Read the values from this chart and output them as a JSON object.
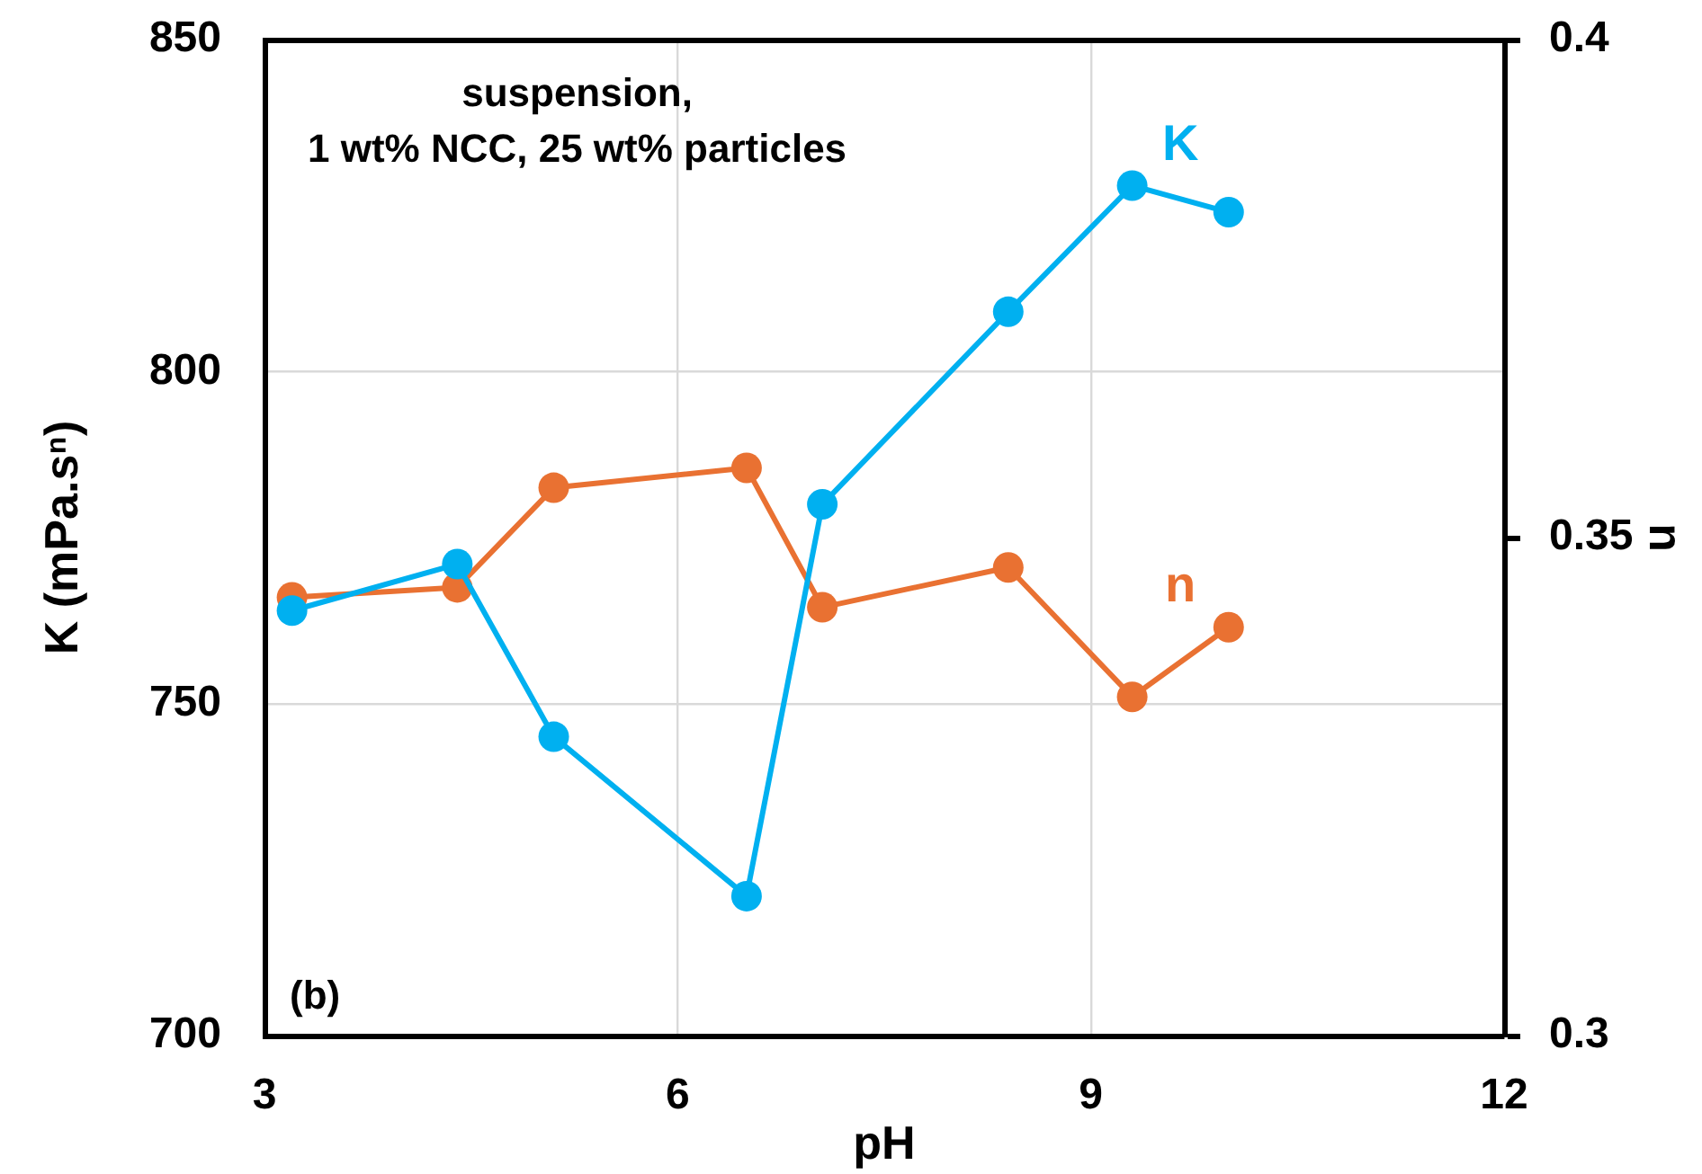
{
  "chart_data": {
    "type": "line",
    "annotations": [
      "suspension,\n1 wt% NCC, 25 wt% particles",
      "(b)"
    ],
    "xlabel": "pH",
    "ylabel": "K (mPa.sⁿ)",
    "y2label": "n",
    "x": [
      3.2,
      4.4,
      5.1,
      6.5,
      7.05,
      8.4,
      9.3,
      10.0
    ],
    "series": [
      {
        "name": "K",
        "color": "#00b0f0",
        "values": [
          764,
          771,
          745,
          721,
          780,
          809,
          828,
          824
        ]
      },
      {
        "name": "n",
        "color": "#e97132",
        "axis": "y2",
        "values": [
          0.344,
          0.345,
          0.355,
          0.357,
          0.343,
          0.347,
          0.334,
          0.341
        ]
      }
    ],
    "xlim": [
      3,
      12
    ],
    "xticks": [
      3,
      6,
      9,
      12
    ],
    "ylim": [
      700,
      850
    ],
    "yticks": [
      700,
      750,
      800,
      850
    ],
    "y2lim": [
      0.3,
      0.4
    ],
    "y2ticks": [
      0.3,
      0.35,
      0.4
    ],
    "grid": true,
    "marker": "circle"
  }
}
